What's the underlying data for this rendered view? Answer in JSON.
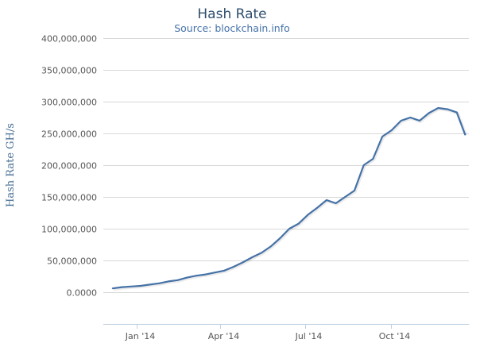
{
  "chart_data": {
    "type": "line",
    "title": "Hash Rate",
    "subtitle": "Source: blockchain.info",
    "ylabel": "Hash Rate GH/s",
    "xlabel": "",
    "y_ticks": [
      {
        "value": 0,
        "label": "0.0000"
      },
      {
        "value": 50000000,
        "label": "50,000,000"
      },
      {
        "value": 100000000,
        "label": "100,000,000"
      },
      {
        "value": 150000000,
        "label": "150,000,000"
      },
      {
        "value": 200000000,
        "label": "200,000,000"
      },
      {
        "value": 250000000,
        "label": "250,000,000"
      },
      {
        "value": 300000000,
        "label": "300,000,000"
      },
      {
        "value": 350000000,
        "label": "350,000,000"
      },
      {
        "value": 400000000,
        "label": "400,000,000"
      }
    ],
    "x_ticks": [
      {
        "date": "2014-01-01",
        "label": "Jan '14"
      },
      {
        "date": "2014-04-01",
        "label": "Apr '14"
      },
      {
        "date": "2014-07-01",
        "label": "Jul '14"
      },
      {
        "date": "2014-10-01",
        "label": "Oct '14"
      }
    ],
    "xlim": [
      "2013-11-26",
      "2014-12-24"
    ],
    "ylim": [
      -50000000,
      400000000
    ],
    "grid": true,
    "legend": "none",
    "color": "#4572a7",
    "series": [
      {
        "name": "",
        "points": [
          {
            "date": "2013-12-06",
            "y": 6000000
          },
          {
            "date": "2013-12-16",
            "y": 8000000
          },
          {
            "date": "2013-12-26",
            "y": 9000000
          },
          {
            "date": "2014-01-05",
            "y": 10000000
          },
          {
            "date": "2014-01-15",
            "y": 12000000
          },
          {
            "date": "2014-01-25",
            "y": 14000000
          },
          {
            "date": "2014-02-04",
            "y": 17000000
          },
          {
            "date": "2014-02-14",
            "y": 19000000
          },
          {
            "date": "2014-02-24",
            "y": 23000000
          },
          {
            "date": "2014-03-06",
            "y": 26000000
          },
          {
            "date": "2014-03-16",
            "y": 28000000
          },
          {
            "date": "2014-03-26",
            "y": 31000000
          },
          {
            "date": "2014-04-05",
            "y": 34000000
          },
          {
            "date": "2014-04-15",
            "y": 40000000
          },
          {
            "date": "2014-04-25",
            "y": 47000000
          },
          {
            "date": "2014-05-05",
            "y": 55000000
          },
          {
            "date": "2014-05-15",
            "y": 62000000
          },
          {
            "date": "2014-05-25",
            "y": 72000000
          },
          {
            "date": "2014-06-04",
            "y": 85000000
          },
          {
            "date": "2014-06-14",
            "y": 100000000
          },
          {
            "date": "2014-06-24",
            "y": 108000000
          },
          {
            "date": "2014-07-04",
            "y": 122000000
          },
          {
            "date": "2014-07-14",
            "y": 133000000
          },
          {
            "date": "2014-07-24",
            "y": 145000000
          },
          {
            "date": "2014-08-03",
            "y": 140000000
          },
          {
            "date": "2014-08-13",
            "y": 150000000
          },
          {
            "date": "2014-08-23",
            "y": 160000000
          },
          {
            "date": "2014-09-02",
            "y": 200000000
          },
          {
            "date": "2014-09-12",
            "y": 210000000
          },
          {
            "date": "2014-09-22",
            "y": 245000000
          },
          {
            "date": "2014-10-02",
            "y": 255000000
          },
          {
            "date": "2014-10-12",
            "y": 270000000
          },
          {
            "date": "2014-10-22",
            "y": 275000000
          },
          {
            "date": "2014-11-01",
            "y": 270000000
          },
          {
            "date": "2014-11-11",
            "y": 282000000
          },
          {
            "date": "2014-11-21",
            "y": 290000000
          },
          {
            "date": "2014-12-01",
            "y": 288000000
          },
          {
            "date": "2014-12-11",
            "y": 283000000
          },
          {
            "date": "2014-12-20",
            "y": 248000000
          }
        ]
      }
    ]
  }
}
